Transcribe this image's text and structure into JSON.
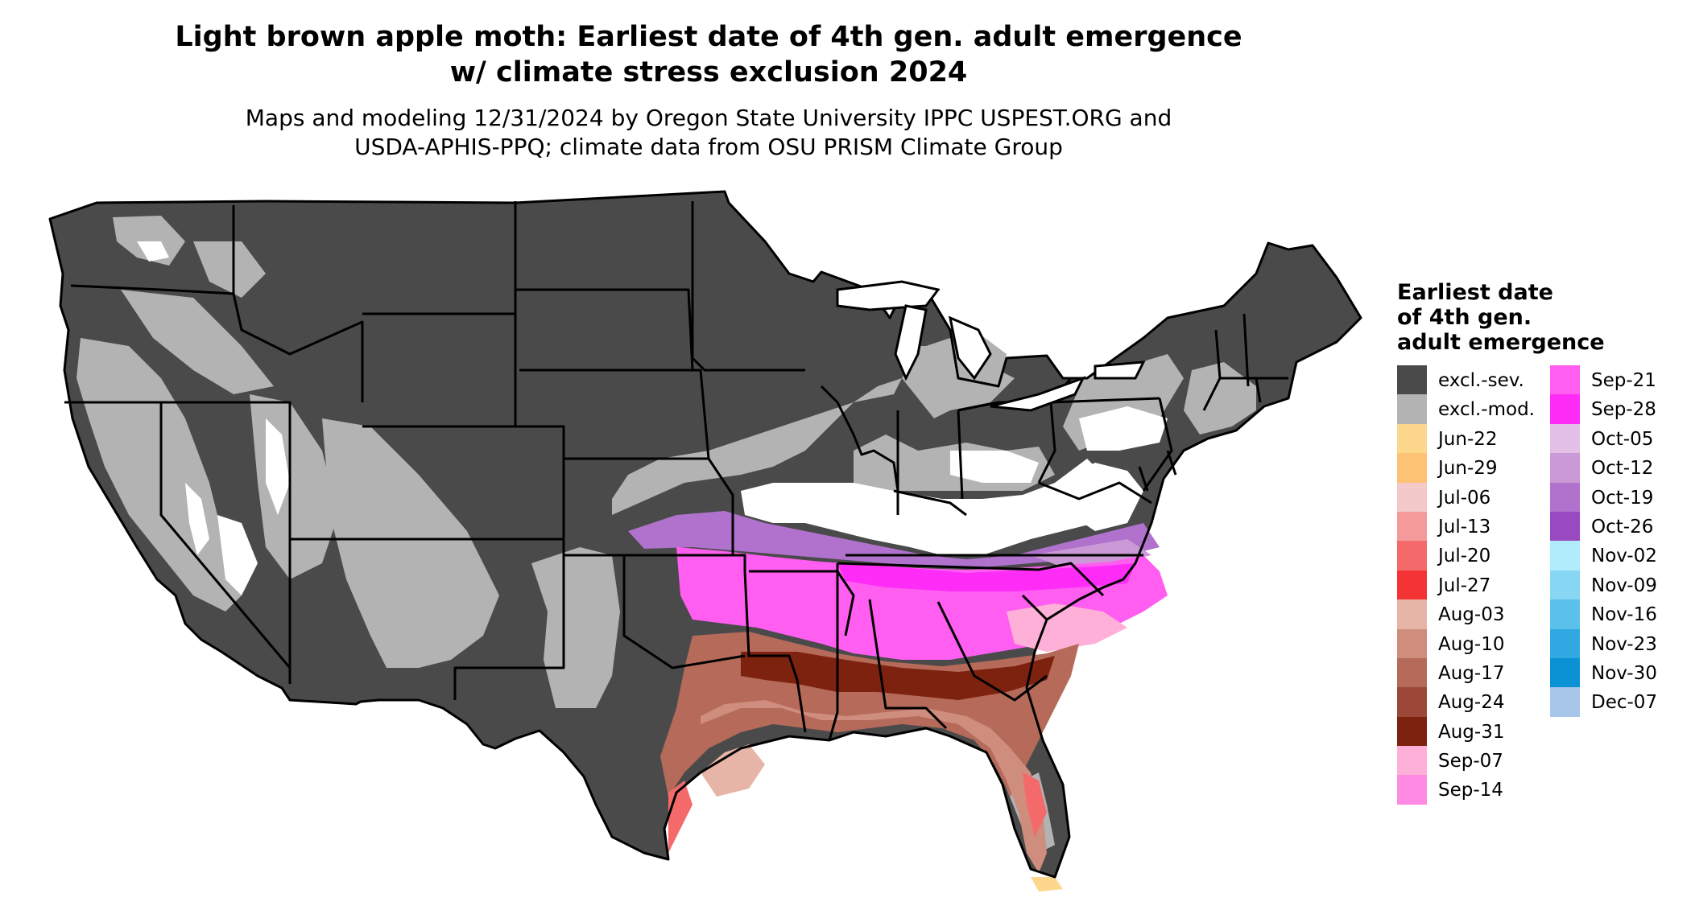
{
  "title_line1": "Light brown apple moth: Earliest date of 4th gen. adult emergence",
  "title_line2": "w/ climate stress exclusion 2024",
  "subtitle_line1": "Maps and modeling 12/31/2024 by Oregon State University IPPC USPEST.ORG and",
  "subtitle_line2": "USDA-APHIS-PPQ; climate data from OSU PRISM Climate Group",
  "legend": {
    "title_line1": "Earliest date",
    "title_line2": "of 4th gen.",
    "title_line3": "adult emergence",
    "items": [
      {
        "label": "excl.-sev.",
        "color": "#4a4a4a"
      },
      {
        "label": "excl.-mod.",
        "color": "#b3b3b3"
      },
      {
        "label": "Jun-22",
        "color": "#fdd88c"
      },
      {
        "label": "Jun-29",
        "color": "#fdc274"
      },
      {
        "label": "Jul-06",
        "color": "#f4c9c9"
      },
      {
        "label": "Jul-13",
        "color": "#f49a9a"
      },
      {
        "label": "Jul-20",
        "color": "#f46a6a"
      },
      {
        "label": "Jul-27",
        "color": "#f43434"
      },
      {
        "label": "Aug-03",
        "color": "#e7b4a8"
      },
      {
        "label": "Aug-10",
        "color": "#cf8d7e"
      },
      {
        "label": "Aug-17",
        "color": "#b56a5a"
      },
      {
        "label": "Aug-24",
        "color": "#9c4838"
      },
      {
        "label": "Aug-31",
        "color": "#7e2210"
      },
      {
        "label": "Sep-07",
        "color": "#ffb0d8"
      },
      {
        "label": "Sep-14",
        "color": "#ff8ae3"
      },
      {
        "label": "Sep-21",
        "color": "#ff5ef0"
      },
      {
        "label": "Sep-28",
        "color": "#ff2cf8"
      },
      {
        "label": "Oct-05",
        "color": "#e3c0e6"
      },
      {
        "label": "Oct-12",
        "color": "#c99ad6"
      },
      {
        "label": "Oct-19",
        "color": "#b072cc"
      },
      {
        "label": "Oct-26",
        "color": "#9a4ac0"
      },
      {
        "label": "Nov-02",
        "color": "#b0ecfc"
      },
      {
        "label": "Nov-09",
        "color": "#86d6f4"
      },
      {
        "label": "Nov-16",
        "color": "#5cc0ec"
      },
      {
        "label": "Nov-23",
        "color": "#30a8e2"
      },
      {
        "label": "Nov-30",
        "color": "#0a92d4"
      },
      {
        "label": "Dec-07",
        "color": "#a8c6ea"
      }
    ]
  }
}
